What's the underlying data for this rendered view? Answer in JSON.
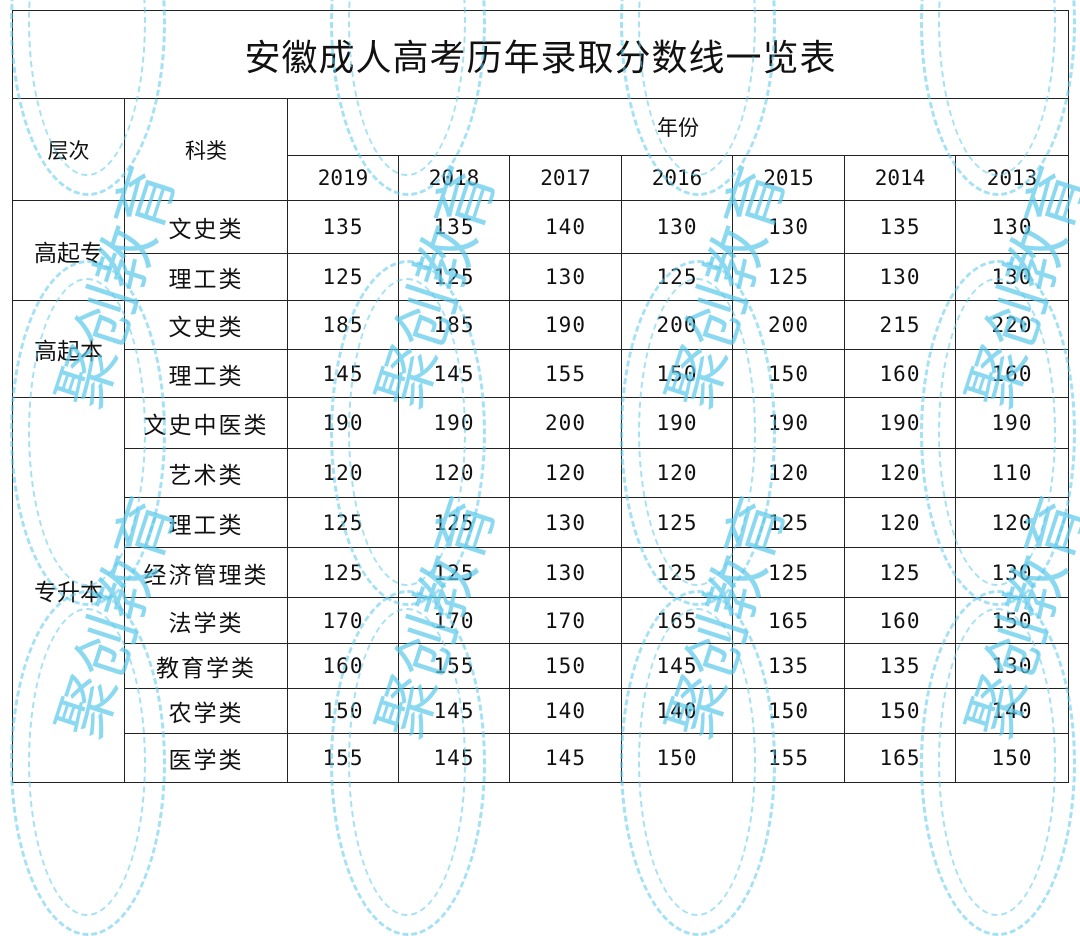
{
  "title": "安徽成人高考历年录取分数线一览表",
  "headers": {
    "level": "层次",
    "category": "科类",
    "year_group": "年份"
  },
  "years": [
    "2019",
    "2018",
    "2017",
    "2016",
    "2015",
    "2014",
    "2013"
  ],
  "groups": [
    {
      "level": "高起专",
      "rows": [
        {
          "category": "文史类",
          "scores": [
            "135",
            "135",
            "140",
            "130",
            "130",
            "135",
            "130"
          ]
        },
        {
          "category": "理工类",
          "scores": [
            "125",
            "125",
            "130",
            "125",
            "125",
            "130",
            "130"
          ]
        }
      ]
    },
    {
      "level": "高起本",
      "rows": [
        {
          "category": "文史类",
          "scores": [
            "185",
            "185",
            "190",
            "200",
            "200",
            "215",
            "220"
          ]
        },
        {
          "category": "理工类",
          "scores": [
            "145",
            "145",
            "155",
            "150",
            "150",
            "160",
            "160"
          ]
        }
      ]
    },
    {
      "level": "专升本",
      "rows": [
        {
          "category": "文史中医类",
          "scores": [
            "190",
            "190",
            "200",
            "190",
            "190",
            "190",
            "190"
          ]
        },
        {
          "category": "艺术类",
          "scores": [
            "120",
            "120",
            "120",
            "120",
            "120",
            "120",
            "110"
          ]
        },
        {
          "category": "理工类",
          "scores": [
            "125",
            "125",
            "130",
            "125",
            "125",
            "120",
            "120"
          ]
        },
        {
          "category": "经济管理类",
          "scores": [
            "125",
            "125",
            "130",
            "125",
            "125",
            "125",
            "130"
          ]
        },
        {
          "category": "法学类",
          "scores": [
            "170",
            "170",
            "170",
            "165",
            "165",
            "160",
            "150"
          ]
        },
        {
          "category": "教育学类",
          "scores": [
            "160",
            "155",
            "150",
            "145",
            "135",
            "135",
            "130"
          ]
        },
        {
          "category": "农学类",
          "scores": [
            "150",
            "145",
            "140",
            "140",
            "150",
            "150",
            "140"
          ]
        },
        {
          "category": "医学类",
          "scores": [
            "155",
            "145",
            "145",
            "150",
            "155",
            "165",
            "150"
          ]
        }
      ]
    }
  ],
  "watermark": {
    "text": "聚创教育",
    "color": "#5ac8eb"
  }
}
